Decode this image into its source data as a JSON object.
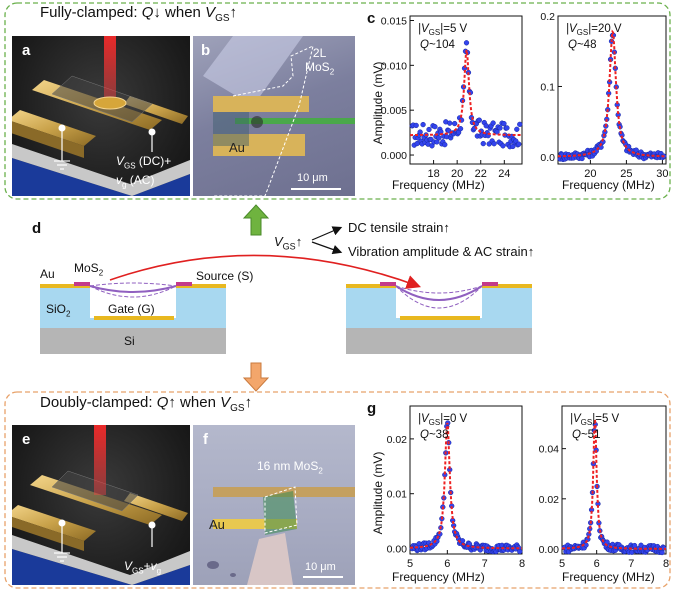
{
  "top_section": {
    "title": "Fully-clamped: Q↓ when V_GS↑",
    "title_parts": {
      "pre": "Fully-clamped: ",
      "q": "Q",
      "mid": "↓ when ",
      "v": "V",
      "sub": "GS",
      "post": "↑"
    },
    "border_color": "#6ab04c"
  },
  "bottom_section": {
    "title": "Doubly-clamped: Q↑ when V_GS↑",
    "title_parts": {
      "pre": "Doubly-clamped: ",
      "q": "Q",
      "mid": "↑ when ",
      "v": "V",
      "sub": "GS",
      "post": "↑"
    },
    "border_color": "#e8a26a"
  },
  "panel_a": {
    "letter": "a",
    "label_vgs_v": "V",
    "label_vgs_sub": "GS",
    "label_vgs_rest": " (DC)+",
    "label_vg_v": "v",
    "label_vg_sub": "g",
    "label_vg_rest": " (AC)"
  },
  "panel_b": {
    "letter": "b",
    "material_line1": "2L",
    "material_line2": "MoS",
    "material_sub": "2",
    "electrode": "Au",
    "scale": "10 μm"
  },
  "panel_e": {
    "letter": "e",
    "label_v": "V",
    "label_sub": "GS",
    "label_plus": "+",
    "label_v2": "v",
    "label_sub2": "g"
  },
  "panel_f": {
    "letter": "f",
    "material": "16 nm MoS",
    "material_sub": "2",
    "electrode": "Au",
    "scale": "10 μm"
  },
  "panel_d": {
    "letter": "d",
    "vgs_v": "V",
    "vgs_sub": "GS",
    "vgs_arrow": "↑",
    "effect1": "DC tensile strain↑",
    "effect2": "Vibration amplitude & AC strain↑",
    "label_au": "Au",
    "label_mos2": "MoS",
    "label_mos2_sub": "2",
    "label_source": "Source (S)",
    "label_sio2": "SiO",
    "label_sio2_sub": "2",
    "label_gate": "Gate (G)",
    "label_si": "Si"
  },
  "panel_c": {
    "letter": "c",
    "ylabel": "Amplitude (mV)",
    "xlabel": "Frequency (MHz)"
  },
  "panel_g": {
    "letter": "g",
    "ylabel": "Amplitude (mV)",
    "xlabel": "Frequency (MHz)"
  },
  "chart_data": [
    {
      "type": "scatter",
      "panel": "c-left",
      "annotation_v": "|V",
      "annotation_sub": "GS",
      "annotation_rest": "|=5 V",
      "q_label": "Q",
      "q_value": "~104",
      "xlim": [
        16,
        25.5
      ],
      "ylim": [
        -0.001,
        0.0155
      ],
      "xticks": [
        18,
        20,
        22,
        24
      ],
      "yticks": [
        0.0,
        0.005,
        0.01,
        0.015
      ],
      "ytick_labels": [
        "0.000",
        "0.005",
        "0.010",
        "0.015"
      ],
      "peak_x": 20.8,
      "peak_y": 0.0117,
      "baseline": 0.0022,
      "width": 0.25,
      "series": [
        {
          "kind": "data",
          "color": "#3344ee"
        },
        {
          "kind": "fit",
          "color": "#ee2222"
        }
      ]
    },
    {
      "type": "scatter",
      "panel": "c-right",
      "annotation_v": "|V",
      "annotation_sub": "GS",
      "annotation_rest": "|=20 V",
      "q_label": "Q",
      "q_value": "~48",
      "xlim": [
        15.5,
        30.5
      ],
      "ylim": [
        -0.01,
        0.2
      ],
      "xticks": [
        20,
        25,
        30
      ],
      "yticks": [
        0.0,
        0.1,
        0.2
      ],
      "ytick_labels": [
        "0.0",
        "0.1",
        "0.2"
      ],
      "peak_x": 23.1,
      "peak_y": 0.178,
      "baseline": 0.0,
      "width": 0.55,
      "series": [
        {
          "kind": "data",
          "color": "#3344ee"
        },
        {
          "kind": "fit",
          "color": "#ee2222"
        }
      ]
    },
    {
      "type": "scatter",
      "panel": "g-left",
      "annotation_v": "|V",
      "annotation_sub": "GS",
      "annotation_rest": "|=0 V",
      "q_label": "Q",
      "q_value": "~38",
      "xlim": [
        5,
        8
      ],
      "ylim": [
        -0.001,
        0.026
      ],
      "xticks": [
        5,
        6,
        7,
        8
      ],
      "yticks": [
        0.0,
        0.01,
        0.02
      ],
      "ytick_labels": [
        "0.00",
        "0.01",
        "0.02"
      ],
      "peak_x": 6.0,
      "peak_y": 0.023,
      "baseline": 0.0,
      "width": 0.08,
      "series": [
        {
          "kind": "data",
          "color": "#3344ee"
        },
        {
          "kind": "fit",
          "color": "#ee2222"
        }
      ]
    },
    {
      "type": "scatter",
      "panel": "g-right",
      "annotation_v": "|V",
      "annotation_sub": "GS",
      "annotation_rest": "|=5 V",
      "q_label": "Q",
      "q_value": "~51",
      "xlim": [
        5,
        8
      ],
      "ylim": [
        -0.002,
        0.057
      ],
      "xticks": [
        5,
        6,
        7,
        8
      ],
      "yticks": [
        0.0,
        0.02,
        0.04
      ],
      "ytick_labels": [
        "0.00",
        "0.02",
        "0.04"
      ],
      "peak_x": 5.95,
      "peak_y": 0.052,
      "baseline": 0.0,
      "width": 0.06,
      "series": [
        {
          "kind": "data",
          "color": "#3344ee"
        },
        {
          "kind": "fit",
          "color": "#ee2222"
        }
      ]
    }
  ]
}
